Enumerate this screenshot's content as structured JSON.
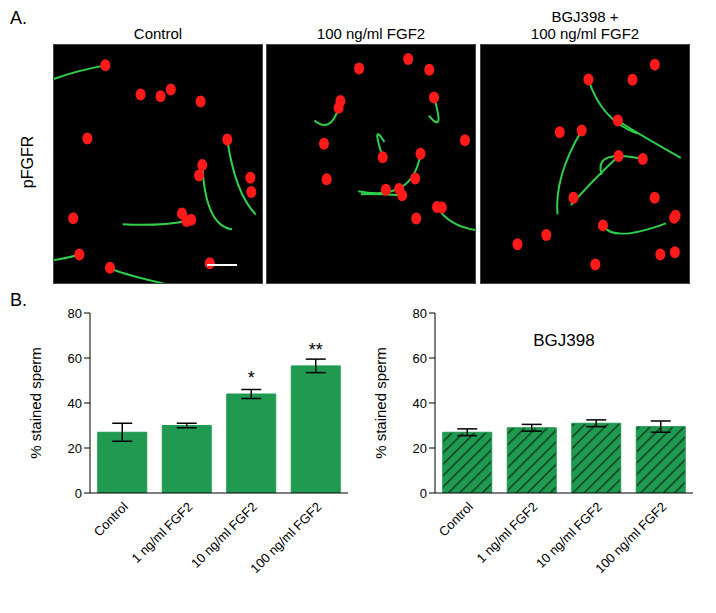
{
  "panel_a": {
    "label": "A.",
    "row_label": "pFGFR",
    "panels": [
      [
        "Control"
      ],
      [
        "100 ng/ml FGF2"
      ],
      [
        "BGJ398 +",
        "100 ng/ml FGF2"
      ]
    ]
  },
  "panel_b": {
    "label": "B."
  },
  "chart_data": [
    {
      "type": "bar",
      "ylabel": "% stained sperm",
      "categories": [
        "Control",
        "1 ng/ml FGF2",
        "10 ng/ml FGF2",
        "100 ng/ml FGF2"
      ],
      "values": [
        27,
        30,
        44,
        56.5
      ],
      "errors": [
        4,
        1,
        2,
        3
      ],
      "annotations": [
        null,
        null,
        "*",
        "**"
      ],
      "color": "#1f9a50",
      "ylim": [
        0,
        80
      ],
      "yticks": [
        0,
        20,
        40,
        60,
        80
      ]
    },
    {
      "type": "bar",
      "title": "BGJ398",
      "ylabel": "% stained sperm",
      "categories": [
        "Control",
        "1 ng/ml FGF2",
        "10 ng/ml FGF2",
        "100 ng/ml FGF2"
      ],
      "values": [
        27,
        29,
        31,
        29.5
      ],
      "errors": [
        1.5,
        1.5,
        1.5,
        2.5
      ],
      "annotations": [
        null,
        null,
        null,
        null
      ],
      "color": "#1f9a50",
      "ylim": [
        0,
        80
      ],
      "yticks": [
        0,
        20,
        40,
        60,
        80
      ]
    }
  ]
}
